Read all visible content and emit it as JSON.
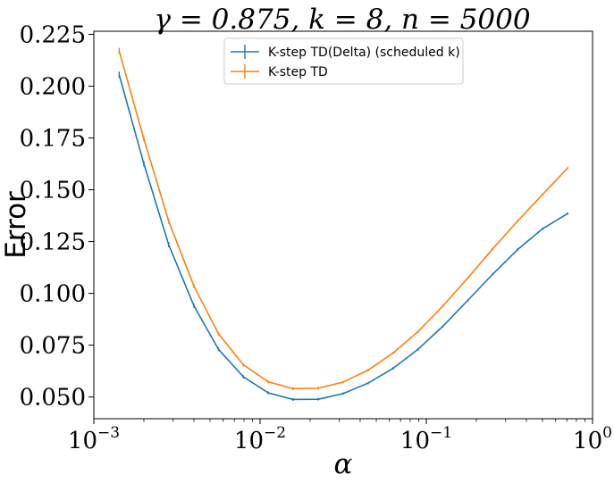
{
  "chart_data": {
    "type": "line",
    "title": "γ = 0.875, k = 8, n = 5000",
    "xlabel": "α",
    "ylabel": "Error",
    "xscale": "log",
    "xlim": [
      0.001,
      1
    ],
    "ylim": [
      0.0395,
      0.2265
    ],
    "xticks": [
      {
        "value": 0.001,
        "base": "10",
        "exp": "−3"
      },
      {
        "value": 0.01,
        "base": "10",
        "exp": "−2"
      },
      {
        "value": 0.1,
        "base": "10",
        "exp": "−1"
      },
      {
        "value": 1,
        "base": "10",
        "exp": "0"
      }
    ],
    "yticks": [
      {
        "value": 0.05,
        "label": "0.050"
      },
      {
        "value": 0.075,
        "label": "0.075"
      },
      {
        "value": 0.1,
        "label": "0.100"
      },
      {
        "value": 0.125,
        "label": "0.125"
      },
      {
        "value": 0.15,
        "label": "0.150"
      },
      {
        "value": 0.175,
        "label": "0.175"
      },
      {
        "value": 0.2,
        "label": "0.200"
      },
      {
        "value": 0.225,
        "label": "0.225"
      }
    ],
    "grid": false,
    "legend_position": "upper-center",
    "x": [
      0.00142,
      0.002,
      0.00282,
      0.004,
      0.00562,
      0.00794,
      0.0112,
      0.0158,
      0.0224,
      0.0316,
      0.0447,
      0.0631,
      0.0891,
      0.126,
      0.178,
      0.251,
      0.355,
      0.501,
      0.708
    ],
    "series": [
      {
        "name": "K-step TD(Delta) (scheduled k)",
        "color": "#1f77b4",
        "values": [
          0.2055,
          0.1625,
          0.1235,
          0.094,
          0.073,
          0.0597,
          0.052,
          0.0488,
          0.0489,
          0.0516,
          0.0567,
          0.0638,
          0.073,
          0.0842,
          0.0967,
          0.1093,
          0.1212,
          0.1312,
          0.1385
        ],
        "errors": [
          0.0015,
          0.0013,
          0.0012,
          0.001,
          0.0009,
          0.0008,
          0.0007,
          0.0007,
          0.0006,
          0.0006,
          0.0006,
          0.0006,
          0.0006,
          0.0006,
          0.0006,
          0.0006,
          0.0006,
          0.0006,
          0.0006
        ]
      },
      {
        "name": "K-step TD",
        "color": "#ff7f0e",
        "values": [
          0.217,
          0.1745,
          0.1348,
          0.1035,
          0.0805,
          0.0655,
          0.0573,
          0.054,
          0.0542,
          0.0572,
          0.063,
          0.0712,
          0.0815,
          0.094,
          0.1075,
          0.1215,
          0.135,
          0.1478,
          0.1605
        ],
        "errors": [
          0.0015,
          0.0013,
          0.0012,
          0.001,
          0.0009,
          0.0008,
          0.0007,
          0.0007,
          0.0006,
          0.0006,
          0.0006,
          0.0006,
          0.0006,
          0.0006,
          0.0006,
          0.0006,
          0.0006,
          0.0006,
          0.0006
        ]
      }
    ]
  }
}
